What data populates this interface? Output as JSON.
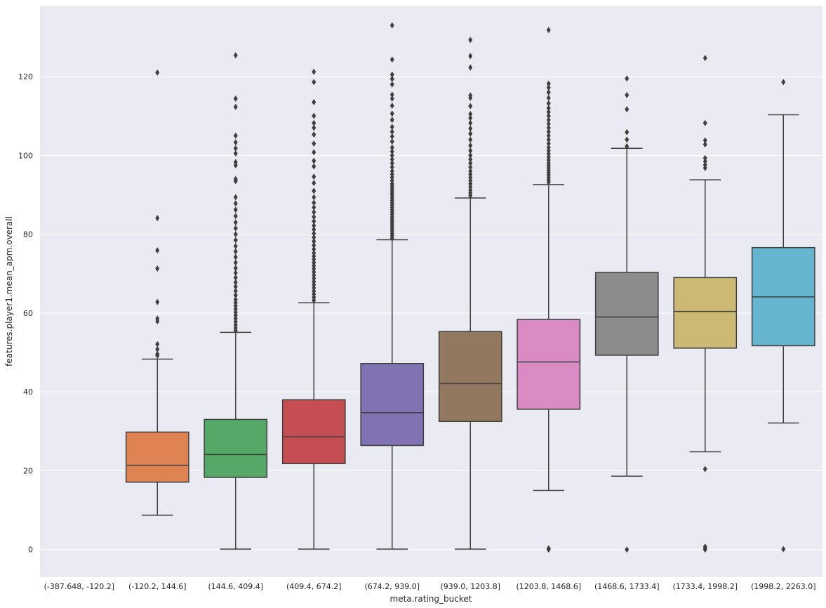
{
  "chart_data": {
    "type": "box",
    "xlabel": "meta.rating_bucket",
    "ylabel": "features.player1.mean_apm.overall",
    "ylim": [
      -7,
      138
    ],
    "yticks": [
      0,
      20,
      40,
      60,
      80,
      100,
      120
    ],
    "grid": true,
    "categories": [
      "(-387.648, -120.2]",
      "(-120.2, 144.6]",
      "(144.6, 409.4]",
      "(409.4, 674.2]",
      "(674.2, 939.0]",
      "(939.0, 1203.8]",
      "(1203.8, 1468.6]",
      "(1468.6, 1733.4]",
      "(1733.4, 1998.2]",
      "(1998.2, 2263.0]"
    ],
    "colors": [
      "#4c72b0",
      "#dd8452",
      "#55a868",
      "#c44e52",
      "#8172b3",
      "#937860",
      "#da8bc3",
      "#8c8c8c",
      "#ccb974",
      "#64b5cd"
    ],
    "boxes": [
      null,
      {
        "whislo": 8.7,
        "q1": 17.1,
        "med": 21.4,
        "q3": 29.8,
        "whishi": 48.3,
        "fliers": [
          49.2,
          49.6,
          50.8,
          52.1,
          57.9,
          58.6,
          62.8,
          71.3,
          75.9,
          84.1,
          121.0
        ]
      },
      {
        "whislo": 0.1,
        "q1": 18.3,
        "med": 24.1,
        "q3": 33.0,
        "whishi": 55.1,
        "fliers": [
          55.5,
          56.2,
          57.0,
          57.8,
          58.6,
          59.4,
          60.2,
          61.0,
          61.8,
          62.6,
          63.4,
          64.5,
          65.6,
          66.7,
          67.8,
          69.0,
          70.2,
          71.4,
          72.8,
          74.2,
          75.6,
          77.0,
          78.5,
          80.0,
          81.5,
          83.0,
          84.6,
          86.2,
          87.8,
          89.4,
          93.5,
          94.0,
          97.5,
          98.3,
          100.5,
          101.8,
          103.3,
          105.0,
          112.3,
          114.4,
          125.4
        ]
      },
      {
        "whislo": 0.1,
        "q1": 21.8,
        "med": 28.6,
        "q3": 38.0,
        "whishi": 62.6,
        "fliers": [
          63.2,
          64.0,
          64.8,
          65.6,
          66.4,
          67.2,
          68.0,
          68.8,
          69.6,
          70.4,
          71.2,
          72.0,
          72.8,
          73.6,
          74.4,
          75.2,
          76.2,
          77.2,
          78.2,
          79.2,
          80.2,
          81.2,
          82.2,
          83.3,
          84.4,
          85.6,
          86.8,
          88.0,
          89.4,
          91.0,
          93.0,
          94.6,
          97.2,
          98.6,
          100.8,
          103.0,
          105.3,
          107.0,
          108.2,
          110.0,
          113.5,
          118.6,
          121.2
        ]
      },
      {
        "whislo": 0.1,
        "q1": 26.4,
        "med": 34.7,
        "q3": 47.2,
        "whishi": 78.6,
        "fliers": [
          79.0,
          79.6,
          80.2,
          80.8,
          81.4,
          82.0,
          82.6,
          83.2,
          83.8,
          84.4,
          85.0,
          85.6,
          86.2,
          86.8,
          87.4,
          88.0,
          88.6,
          89.2,
          89.8,
          90.4,
          91.0,
          91.6,
          92.2,
          92.8,
          93.6,
          94.4,
          95.2,
          96.0,
          97.0,
          98.0,
          99.0,
          100.0,
          101.0,
          102.0,
          103.5,
          104.8,
          106.0,
          107.2,
          109.0,
          110.6,
          112.6,
          114.4,
          115.4,
          118.0,
          119.4,
          120.5,
          124.3,
          133.0
        ]
      },
      {
        "whislo": 0.1,
        "q1": 32.5,
        "med": 42.1,
        "q3": 55.3,
        "whishi": 89.2,
        "fliers": [
          89.8,
          90.5,
          91.2,
          92.0,
          92.8,
          93.6,
          94.4,
          95.2,
          96.0,
          97.0,
          98.0,
          99.0,
          100.0,
          101.2,
          102.5,
          104.0,
          105.5,
          106.8,
          108.2,
          109.5,
          110.5,
          112.5,
          114.6,
          115.2,
          122.3,
          125.2,
          129.3
        ]
      },
      {
        "whislo": 15.0,
        "q1": 35.6,
        "med": 47.6,
        "q3": 58.4,
        "whishi": 92.6,
        "fliers": [
          0.0,
          0.3,
          93.2,
          93.8,
          94.4,
          95.0,
          95.6,
          96.2,
          96.8,
          97.4,
          98.0,
          98.8,
          99.6,
          100.4,
          101.2,
          102.0,
          103.0,
          104.0,
          105.0,
          106.0,
          107.0,
          108.0,
          109.0,
          110.0,
          111.0,
          112.0,
          113.2,
          114.6,
          116.0,
          117.2,
          118.2,
          131.8
        ]
      },
      {
        "whislo": 18.6,
        "q1": 49.3,
        "med": 59.0,
        "q3": 70.3,
        "whishi": 101.8,
        "fliers": [
          0.0,
          102.3,
          104.0,
          105.9,
          111.7,
          115.3,
          119.5
        ]
      },
      {
        "whislo": 24.8,
        "q1": 51.1,
        "med": 60.4,
        "q3": 69.0,
        "whishi": 93.8,
        "fliers": [
          0.0,
          0.3,
          0.7,
          20.4,
          96.8,
          97.6,
          98.5,
          99.3,
          102.8,
          103.8,
          108.2,
          124.7
        ]
      },
      {
        "whislo": 32.1,
        "q1": 51.7,
        "med": 64.1,
        "q3": 76.6,
        "whishi": 110.3,
        "fliers": [
          0.1,
          118.6
        ]
      }
    ]
  }
}
